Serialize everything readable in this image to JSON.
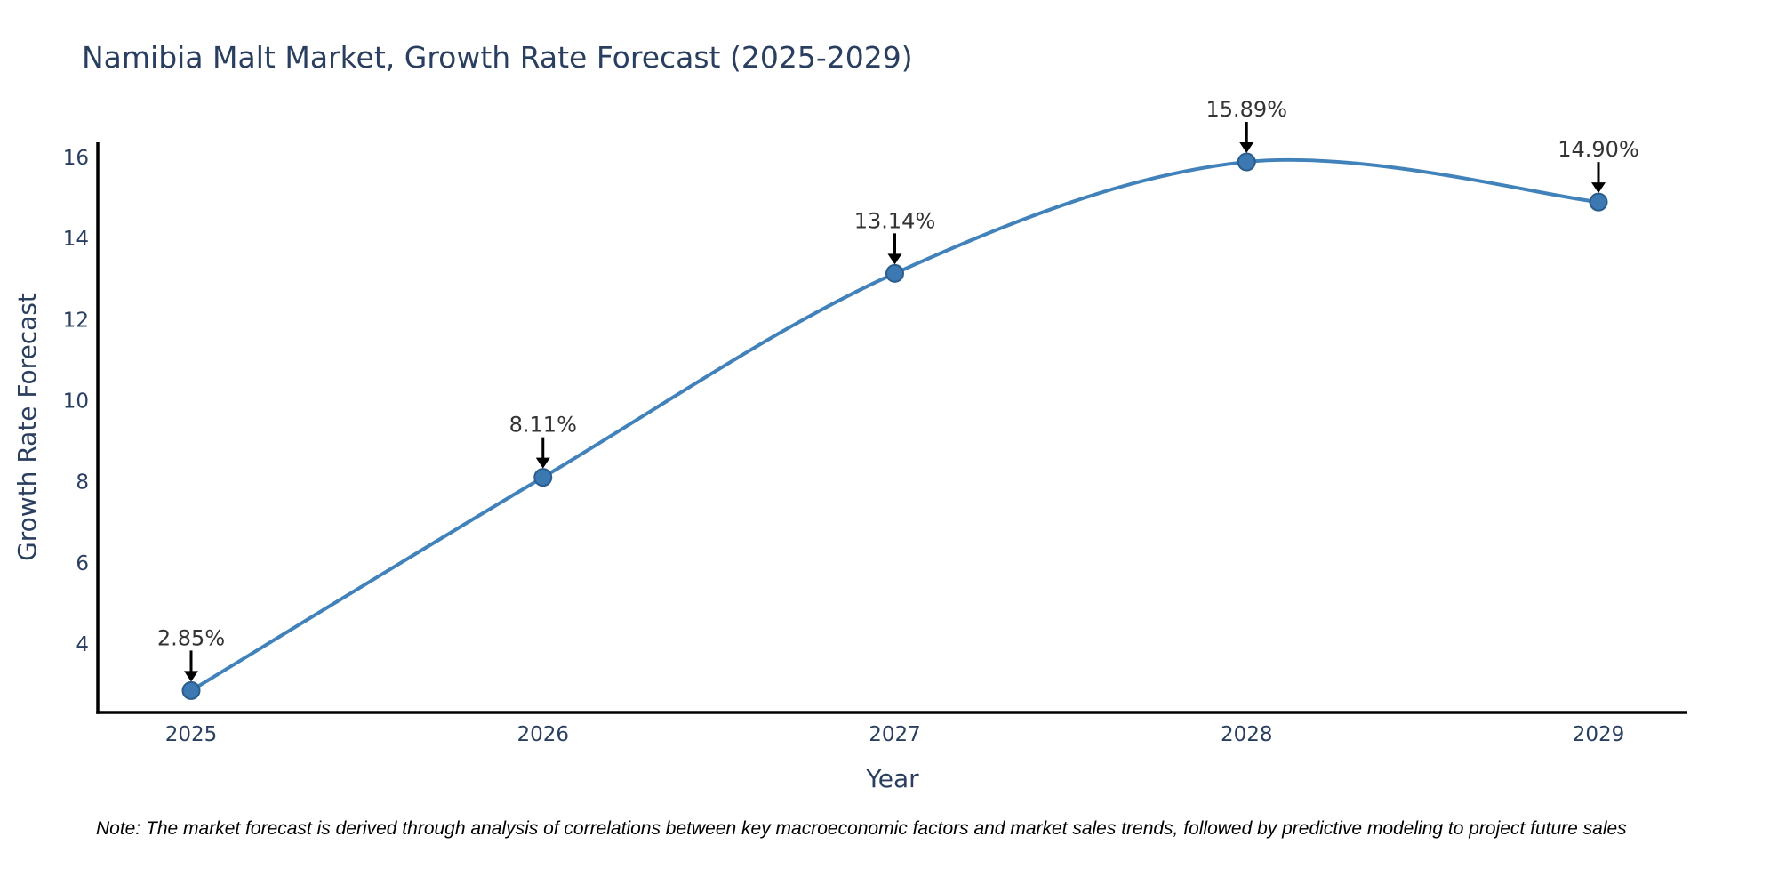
{
  "chart_data": {
    "type": "line",
    "title": "Namibia Malt Market, Growth Rate Forecast (2025-2029)",
    "xlabel": "Year",
    "ylabel": "Growth Rate Forecast",
    "x": [
      2025,
      2026,
      2027,
      2028,
      2029
    ],
    "series": [
      {
        "name": "Growth Rate Forecast",
        "values": [
          2.85,
          8.11,
          13.14,
          15.89,
          14.9
        ]
      }
    ],
    "annotations": [
      "2.85%",
      "8.11%",
      "13.14%",
      "15.89%",
      "14.90%"
    ],
    "yticks": [
      4,
      6,
      8,
      10,
      12,
      14,
      16
    ],
    "ylim": [
      2.3,
      16.4
    ],
    "xlim": [
      2024.73,
      2029.25
    ],
    "grid": false,
    "line_shape": "spline",
    "legend": "none",
    "colors": {
      "line": "#4282ba",
      "marker_fill": "#3c78b2",
      "marker_edge": "#2a5d8c",
      "axis_text": "#2a3f5f",
      "annotation_text": "#333333",
      "arrow": "#000000",
      "axis_line": "#000000",
      "background": "#ffffff"
    },
    "note": "Note: The market forecast is derived through analysis of correlations between key macroeconomic factors and market sales trends, followed by predictive modeling to project future sales"
  }
}
